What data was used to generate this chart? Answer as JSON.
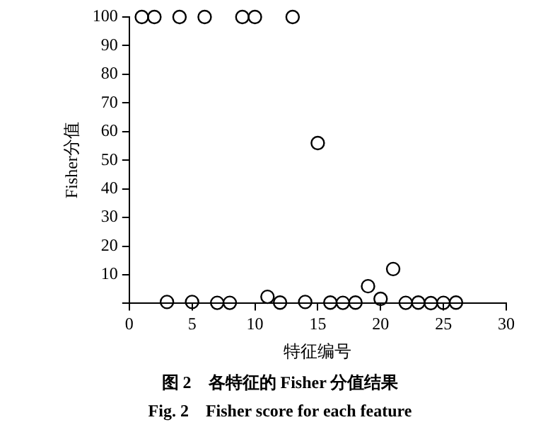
{
  "chart_data": {
    "type": "scatter",
    "xlabel": "特征编号",
    "ylabel": "Fisher分值",
    "x": [
      1,
      2,
      3,
      4,
      5,
      6,
      7,
      8,
      9,
      10,
      11,
      12,
      13,
      14,
      15,
      16,
      17,
      18,
      19,
      20,
      21,
      22,
      23,
      24,
      25,
      26
    ],
    "series": [
      {
        "color": "#000000",
        "values": [
          100,
          100,
          0.5,
          100,
          0.5,
          100,
          0.2,
          0.2,
          100,
          100,
          2.3,
          0.3,
          100,
          0.5,
          56,
          0.3,
          0.2,
          0.3,
          6,
          1.6,
          12,
          0.2,
          0.3,
          0.1,
          0.2,
          0.3
        ]
      }
    ],
    "xlim": [
      0,
      30
    ],
    "xticks": [
      0,
      5,
      10,
      15,
      20,
      25,
      30
    ],
    "ylim": [
      0,
      100
    ],
    "yticks": [
      {
        "value": 0,
        "label": null
      },
      10,
      20,
      30,
      40,
      50,
      60,
      70,
      80,
      90,
      100
    ],
    "grid": false,
    "legend": false,
    "marker": "circle",
    "annotations": [
      "图 2　各特征的 Fisher 分值结果",
      "Fig. 2　Fisher score for each feature"
    ]
  }
}
